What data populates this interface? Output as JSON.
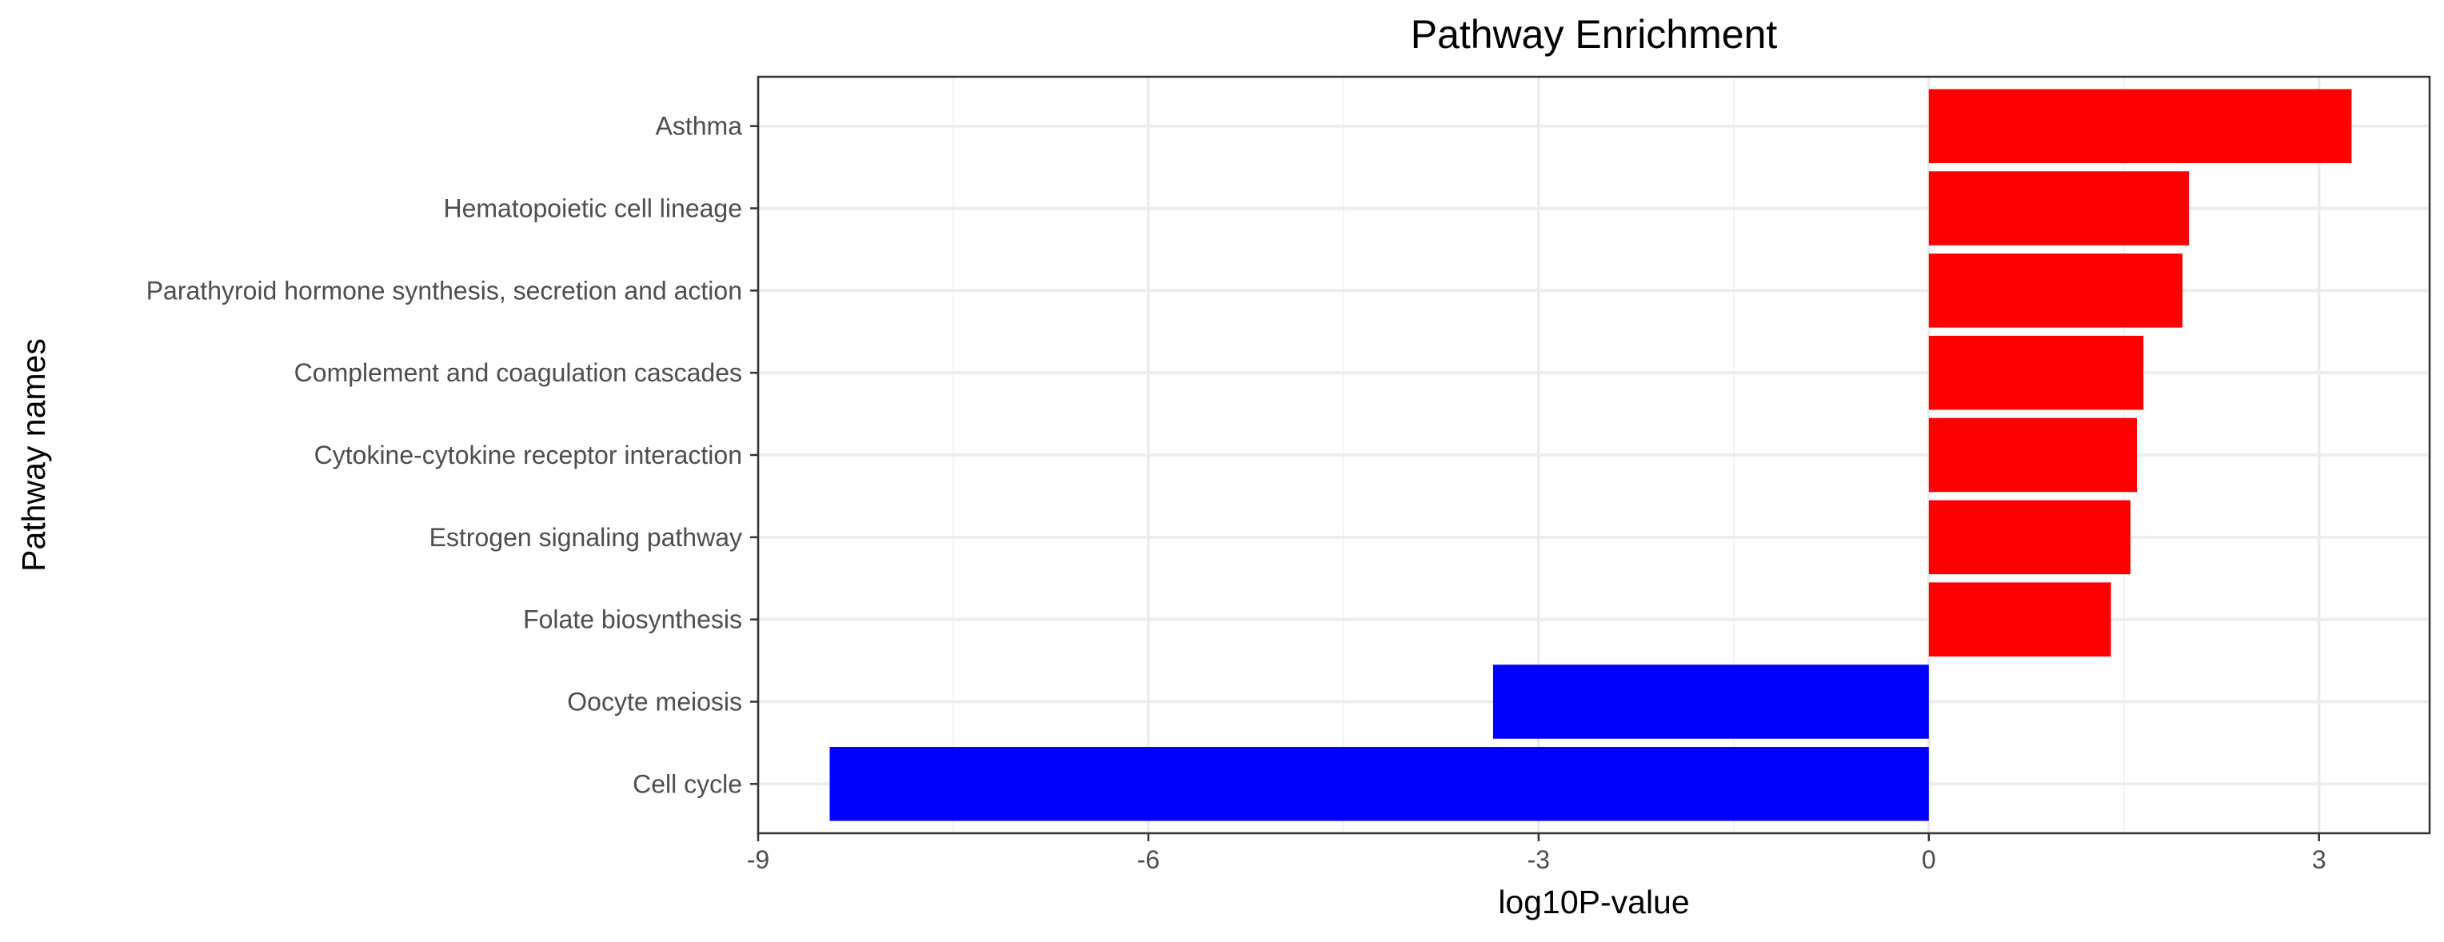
{
  "chart_data": {
    "type": "bar",
    "orientation": "horizontal",
    "title": "Pathway Enrichment",
    "xlabel": "log10P-value",
    "ylabel": "Pathway names",
    "categories": [
      "Asthma",
      "Hematopoietic cell lineage",
      "Parathyroid hormone synthesis, secretion and action",
      "Complement and coagulation cascades",
      "Cytokine-cytokine receptor interaction",
      "Estrogen signaling pathway",
      "Folate biosynthesis",
      "Oocyte meiosis",
      "Cell cycle"
    ],
    "values": [
      3.25,
      2.0,
      1.95,
      1.65,
      1.6,
      1.55,
      1.4,
      -3.35,
      -8.45
    ],
    "xlim": [
      -9.0,
      3.85
    ],
    "xticks": [
      -9,
      -6,
      -3,
      0,
      3
    ],
    "xtick_labels": [
      "-9",
      "-6",
      "-3",
      "0",
      "3"
    ],
    "positive_color": "#ff0000",
    "negative_color": "#0000ff",
    "grid": true,
    "legend": "none"
  }
}
